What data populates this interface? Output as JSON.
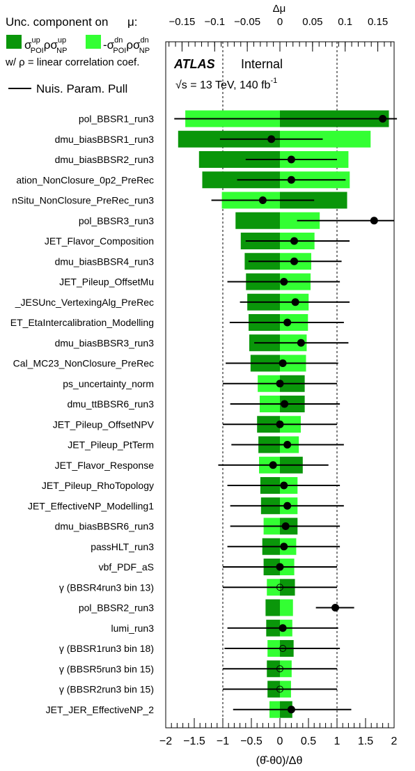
{
  "legend": {
    "title": "Unc. component on",
    "title_symbol": "μ:",
    "up_label": "σ",
    "up_sup1": "up",
    "up_sub1": "POI",
    "up_mid": "ρσ",
    "up_sup2": "up",
    "up_sub2": "NP",
    "dn_label": "-σ",
    "dn_sup1": "dn",
    "dn_sub1": "POI",
    "dn_mid": "ρσ",
    "dn_sup2": "dn",
    "dn_sub2": "NP",
    "rho_note": "w/  ρ = linear correlation coef.",
    "pull_label": "Nuis. Param. Pull"
  },
  "branding": {
    "atlas": "ATLAS",
    "status": "Internal",
    "energy": "√s = 13 TeV, 140 fb",
    "energy_sup": "-1"
  },
  "colors": {
    "up": "#0a960a",
    "down": "#33ff33",
    "pull": "#000000"
  },
  "chart_data": {
    "type": "bar",
    "title": "",
    "xlabel": "(θ̂-θ0)/Δθ",
    "top_axis_label": "Δμ",
    "xlim": [
      -2,
      2
    ],
    "top_xlim": [
      -0.175,
      0.175
    ],
    "xticks": [
      "−2",
      "−1.5",
      "−1",
      "−0.5",
      "0",
      "0.5",
      "1",
      "1.5",
      "2"
    ],
    "top_xticks": [
      "−0.15",
      "−0.1",
      "−0.05",
      "0",
      "0.05",
      "0.1",
      "0.15"
    ],
    "grid": "dashed lines at pull ±1",
    "categories": [
      "pol_BBSR1_run3",
      "dmu_biasBBSR1_run3",
      "dmu_biasBBSR2_run3",
      "ation_NonClosure_0p2_PreRec",
      "nSitu_NonClosure_PreRec_run3",
      "pol_BBSR3_run3",
      "JET_Flavor_Composition",
      "dmu_biasBBSR4_run3",
      "JET_Pileup_OffsetMu",
      "_JESUnc_VertexingAlg_PreRec",
      "ET_EtaIntercalibration_Modelling",
      "dmu_biasBBSR3_run3",
      "Cal_MC23_NonClosure_PreRec",
      "ps_uncertainty_norm",
      "dmu_ttBBSR6_run3",
      "JET_Pileup_OffsetNPV",
      "JET_Pileup_PtTerm",
      "JET_Flavor_Response",
      "JET_Pileup_RhoTopology",
      "JET_EffectiveNP_Modelling1",
      "dmu_biasBBSR6_run3",
      "passHLT_run3",
      "vbf_PDF_aS",
      "γ (BBSR4run3 bin 13)",
      "pol_BBSR2_run3",
      "lumi_run3",
      "γ (BBSR1run3 bin 18)",
      "γ (BBSR5run3 bin 15)",
      "γ (BBSR2run3 bin 15)",
      "JET_JER_EffectiveNP_2"
    ],
    "series": [
      {
        "name": "σ_POI^up ρ σ_NP^up",
        "values": [
          0.167,
          -0.156,
          -0.124,
          -0.119,
          0.103,
          -0.068,
          -0.06,
          -0.054,
          -0.052,
          -0.05,
          -0.048,
          -0.047,
          -0.045,
          0.038,
          0.038,
          -0.035,
          -0.033,
          0.035,
          -0.03,
          -0.029,
          0.027,
          -0.027,
          -0.025,
          0.023,
          -0.022,
          -0.021,
          0.021,
          -0.02,
          -0.019,
          0.019
        ]
      },
      {
        "name": "-σ_POI^dn ρ σ_NP^dn",
        "values": [
          -0.145,
          0.139,
          0.105,
          0.107,
          -0.089,
          0.061,
          0.053,
          0.048,
          0.047,
          0.044,
          0.043,
          0.041,
          0.04,
          -0.034,
          -0.031,
          0.032,
          0.029,
          -0.032,
          0.027,
          0.027,
          -0.025,
          0.025,
          0.022,
          -0.02,
          0.02,
          0.019,
          -0.019,
          0.018,
          0.017,
          -0.016
        ]
      },
      {
        "name": "pull",
        "values": [
          1.8,
          -0.15,
          0.2,
          0.2,
          -0.3,
          1.65,
          0.25,
          0.25,
          0.07,
          0.27,
          0.13,
          0.37,
          0.05,
          0.0,
          0.08,
          0.0,
          0.13,
          -0.12,
          0.07,
          0.13,
          0.1,
          0.07,
          0.0,
          0.0,
          0.97,
          0.05,
          0.05,
          0.0,
          0.0,
          0.2
        ],
        "err_lo": [
          -1.85,
          -1.05,
          -0.6,
          -0.75,
          -1.2,
          0.3,
          -0.6,
          -0.55,
          -0.92,
          -0.7,
          -0.88,
          -0.45,
          -0.95,
          -1.0,
          -0.87,
          -1.0,
          -0.85,
          -1.08,
          -0.92,
          -0.87,
          -0.87,
          -0.92,
          -1.0,
          -1.0,
          0.63,
          -0.92,
          -0.97,
          -1.0,
          -1.0,
          -0.82
        ],
        "err_hi": [
          2.05,
          0.75,
          1.0,
          1.15,
          0.6,
          2.0,
          1.22,
          1.08,
          1.05,
          1.22,
          1.12,
          1.2,
          1.02,
          1.0,
          1.05,
          1.0,
          1.12,
          0.85,
          1.05,
          1.12,
          1.05,
          1.05,
          1.0,
          1.0,
          1.3,
          1.02,
          1.05,
          1.0,
          1.0,
          1.25
        ],
        "marker": [
          "filled",
          "filled",
          "filled",
          "filled",
          "filled",
          "filled",
          "filled",
          "filled",
          "filled",
          "filled",
          "filled",
          "filled",
          "filled",
          "filled",
          "filled",
          "filled",
          "filled",
          "filled",
          "filled",
          "filled",
          "filled",
          "filled",
          "filled",
          "open",
          "filled",
          "filled",
          "open",
          "open",
          "open",
          "filled"
        ]
      }
    ]
  }
}
